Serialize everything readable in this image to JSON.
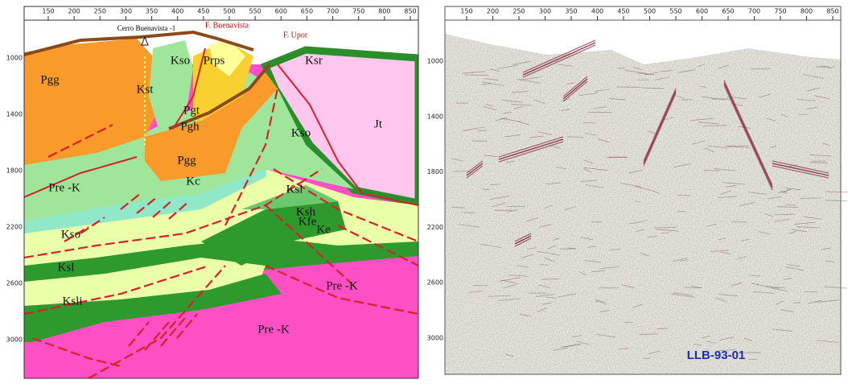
{
  "left_panel": {
    "top_ticks": [
      "150",
      "200",
      "250",
      "300",
      "350",
      "400",
      "450",
      "500",
      "550",
      "600",
      "650",
      "700",
      "750",
      "800",
      "850"
    ],
    "depth_ticks": [
      "1000",
      "1400",
      "1800",
      "2200",
      "2600",
      "3000"
    ],
    "well": "Cerro Buenavista -1",
    "faults": [
      "F. Buenavista",
      "F. Upor"
    ],
    "units": [
      "Pgg",
      "Kst",
      "Kso",
      "Prps",
      "Pgt",
      "Pgh",
      "Jt",
      "Kso",
      "Pgg",
      "Pre -K",
      "Kc",
      "Ksl",
      "Ksh",
      "Kfe",
      "Ke",
      "Kso",
      "Ksl",
      "Ksli",
      "Pre -K",
      "Pre -K",
      "Ksr"
    ]
  },
  "right_panel": {
    "top_ticks": [
      "150",
      "200",
      "250",
      "300",
      "350",
      "400",
      "450",
      "500",
      "550",
      "600",
      "650",
      "700",
      "750",
      "800",
      "850"
    ],
    "depth_ticks": [
      "1000",
      "1400",
      "1800",
      "2200",
      "2600",
      "3000"
    ],
    "line_name": "LLB-93-01"
  }
}
